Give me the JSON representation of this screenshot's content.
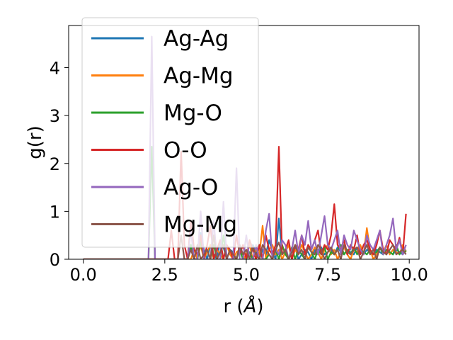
{
  "chart_data": {
    "type": "line",
    "title": "",
    "xlabel": "r (",
    "xlabel_unit": "Å",
    "xlabel_close": ")",
    "ylabel": "g(r)",
    "xlim": [
      -0.45,
      10.3
    ],
    "ylim": [
      0,
      4.88
    ],
    "xticks": [
      0.0,
      2.5,
      5.0,
      7.5,
      10.0
    ],
    "xtick_labels": [
      "0.0",
      "2.5",
      "5.0",
      "7.5",
      "10.0"
    ],
    "yticks": [
      0,
      1,
      2,
      3,
      4
    ],
    "ytick_labels": [
      "0",
      "1",
      "2",
      "3",
      "4"
    ],
    "grid": false,
    "legend_position": "top-left",
    "x": [
      0.0,
      0.1,
      0.2,
      0.3,
      0.4,
      0.5,
      0.6,
      0.7,
      0.8,
      0.9,
      1.0,
      1.1,
      1.2,
      1.3,
      1.4,
      1.5,
      1.6,
      1.7,
      1.8,
      1.9,
      2.0,
      2.1,
      2.2,
      2.3,
      2.4,
      2.5,
      2.6,
      2.7,
      2.8,
      2.9,
      3.0,
      3.1,
      3.2,
      3.3,
      3.4,
      3.5,
      3.6,
      3.7,
      3.8,
      3.9,
      4.0,
      4.1,
      4.2,
      4.3,
      4.4,
      4.5,
      4.6,
      4.7,
      4.8,
      4.9,
      5.0,
      5.1,
      5.2,
      5.3,
      5.4,
      5.5,
      5.6,
      5.7,
      5.8,
      5.9,
      6.0,
      6.1,
      6.2,
      6.3,
      6.4,
      6.5,
      6.6,
      6.7,
      6.8,
      6.9,
      7.0,
      7.1,
      7.2,
      7.3,
      7.4,
      7.5,
      7.6,
      7.7,
      7.8,
      7.9,
      8.0,
      8.1,
      8.2,
      8.3,
      8.4,
      8.5,
      8.6,
      8.7,
      8.8,
      8.9,
      9.0,
      9.1,
      9.2,
      9.3,
      9.4,
      9.5,
      9.6,
      9.7,
      9.8,
      9.9
    ],
    "series": [
      {
        "name": "Ag-Ag",
        "color": "#1f77b4",
        "values": [
          0,
          0,
          0,
          0,
          0,
          0,
          0,
          0,
          0,
          0,
          0,
          0,
          0,
          0,
          0,
          0,
          0,
          0,
          0,
          0,
          0,
          0,
          0,
          0,
          0,
          0,
          0,
          0,
          0,
          0,
          0,
          0,
          0,
          0.3,
          0,
          0,
          0.55,
          0.2,
          0,
          0.3,
          0.1,
          0,
          0.4,
          0.25,
          0,
          0.2,
          0.15,
          0,
          0.25,
          0.1,
          0.2,
          0,
          0.3,
          0.15,
          0,
          0.2,
          0.1,
          0.4,
          0.15,
          0,
          0.85,
          0.1,
          0.2,
          0,
          0.15,
          0.25,
          0,
          0.1,
          0.2,
          0.15,
          0,
          0.2,
          0.1,
          0.25,
          0.1,
          0.15,
          0.2,
          0.1,
          0.25,
          0.15,
          0.1,
          0.2,
          0.15,
          0.1,
          0.25,
          0.15,
          0.1,
          0.2,
          0.15,
          0.1,
          0.2,
          0.15,
          0.1,
          0.2,
          0.15,
          0.1,
          0.2,
          0.15,
          0.1,
          0.2
        ]
      },
      {
        "name": "Ag-Mg",
        "color": "#ff7f0e",
        "values": [
          0,
          0,
          0,
          0,
          0,
          0,
          0,
          0,
          0,
          0,
          0,
          0,
          0,
          0,
          0,
          0,
          0,
          0,
          0,
          0,
          0,
          0,
          0,
          0,
          0,
          0,
          0,
          0,
          0,
          0,
          0,
          0,
          0,
          0,
          0.2,
          0,
          0.3,
          0,
          0.15,
          0.3,
          0,
          0.2,
          0.1,
          0,
          0.3,
          0.1,
          0,
          0.15,
          0.2,
          0,
          0.1,
          0.3,
          0,
          0.2,
          0.1,
          0.7,
          0,
          0.2,
          0.3,
          0.1,
          0.2,
          0,
          0.15,
          0.3,
          0,
          0.2,
          0.1,
          0.3,
          0.15,
          0,
          0.1,
          0.25,
          0.15,
          0,
          0.2,
          0.3,
          0.1,
          0.2,
          0,
          0.15,
          0.25,
          0.1,
          0,
          0.2,
          0.15,
          0.3,
          0.1,
          0.65,
          0.2,
          0,
          0.1,
          0.25,
          0.15,
          0.3,
          0.1,
          0.2,
          0.15,
          0.1,
          0.3,
          0.15
        ]
      },
      {
        "name": "Mg-O",
        "color": "#2ca02c",
        "values": [
          0,
          0,
          0,
          0,
          0,
          0,
          0,
          0,
          0,
          0,
          0,
          0,
          0,
          0,
          0,
          0,
          0,
          0,
          0,
          0,
          0,
          2.35,
          0,
          0,
          0,
          0,
          0,
          0,
          0,
          0,
          0,
          0,
          0,
          0.3,
          0,
          0,
          0.4,
          0,
          0,
          0,
          0.3,
          0,
          0,
          0.5,
          0,
          0,
          0,
          0,
          0.2,
          0,
          0,
          0.15,
          0,
          0,
          0.3,
          0,
          0,
          0.1,
          0,
          0.2,
          0,
          0.3,
          0.1,
          0,
          0.25,
          0,
          0.2,
          0.1,
          0,
          0.3,
          0.15,
          0,
          0.2,
          0.1,
          0.25,
          0,
          0.15,
          0.1,
          0.2,
          0.3,
          0.1,
          0.2,
          0.1,
          0.25,
          0.1,
          0.2,
          0.15,
          0.1,
          0.2,
          0.1,
          0.15,
          0.25,
          0.1,
          0.2,
          0.15,
          0.1,
          0.3,
          0.1,
          0.2,
          0.15
        ]
      },
      {
        "name": "O-O",
        "color": "#d62728",
        "values": [
          0,
          0,
          0,
          0,
          0,
          0,
          0,
          0,
          0,
          0,
          0,
          0,
          0,
          0,
          0,
          0,
          0,
          0,
          0,
          0,
          0,
          0,
          0,
          0,
          0,
          0,
          0,
          0.6,
          0,
          0,
          2.25,
          0.3,
          0,
          0.8,
          0.2,
          0.1,
          0.5,
          0,
          0.3,
          0.7,
          0,
          0.2,
          0.4,
          0,
          0.3,
          0.2,
          0,
          0.5,
          0.1,
          0.3,
          0,
          0.4,
          0.2,
          0,
          0.3,
          0,
          0.5,
          0.2,
          0.1,
          0.3,
          2.35,
          0.1,
          0.2,
          0.4,
          0,
          0.3,
          0.2,
          0.5,
          0.1,
          0.3,
          0.2,
          0.4,
          0.6,
          0.1,
          0.3,
          0.2,
          0.5,
          1.15,
          0.3,
          0.2,
          0.4,
          0.1,
          0.3,
          0.2,
          0.5,
          0.1,
          0.3,
          0.4,
          0.2,
          0.1,
          0.3,
          0.6,
          0.2,
          0.1,
          0.4,
          0.3,
          0.2,
          0.45,
          0.1,
          0.95
        ]
      },
      {
        "name": "Ag-O",
        "color": "#9467bd",
        "values": [
          0,
          0,
          0,
          0,
          0,
          0,
          0,
          0,
          0,
          0,
          0,
          0,
          0,
          0,
          0,
          0,
          0,
          0,
          0,
          0,
          0,
          4.65,
          0,
          0,
          0,
          0,
          0,
          0,
          0,
          0,
          0,
          0,
          0,
          0.6,
          0,
          0,
          1.0,
          0,
          0,
          0,
          0.8,
          0,
          0,
          1.2,
          0,
          0,
          0,
          1.9,
          0,
          0,
          0.5,
          0,
          0,
          0.3,
          0,
          0,
          0.6,
          0.95,
          0,
          0.2,
          0.1,
          0.4,
          0.3,
          0,
          0.2,
          0.6,
          0.1,
          0.5,
          0.3,
          0.8,
          0.2,
          0.4,
          0.1,
          0.5,
          0.9,
          0.3,
          0.2,
          0.4,
          0.6,
          0.1,
          0.5,
          0.3,
          0.2,
          0.6,
          0.4,
          0.2,
          0.1,
          0.5,
          0.3,
          0.2,
          0.4,
          0.6,
          0.1,
          0.3,
          0.5,
          0.85,
          0.2,
          0.4,
          0.1,
          0.3
        ]
      },
      {
        "name": "Mg-Mg",
        "color": "#8c564b",
        "values": [
          0,
          0,
          0,
          0,
          0,
          0,
          0,
          0,
          0,
          0,
          0,
          0,
          0,
          0,
          0,
          0,
          0,
          0,
          0,
          0,
          0,
          0,
          0,
          0,
          0,
          0,
          0,
          0,
          0,
          0,
          0.5,
          0,
          0,
          0.2,
          0,
          0.3,
          0,
          0.1,
          0.2,
          0,
          0.5,
          0,
          0.15,
          0.3,
          0,
          0.2,
          0.1,
          0,
          0.3,
          0.1,
          0.2,
          0,
          0.25,
          0.1,
          0,
          0.3,
          0.2,
          0.1,
          0,
          0.2,
          0.35,
          0.1,
          0.2,
          0,
          0.15,
          0.3,
          0.1,
          0.2,
          0,
          0.25,
          0.15,
          0.1,
          0.3,
          0.2,
          0,
          0.15,
          0.25,
          0.1,
          0.2,
          0,
          0.3,
          0.15,
          0.1,
          0.2,
          0.25,
          0,
          0.15,
          0.3,
          0.1,
          0.2,
          0,
          0.25,
          0.15,
          0.1,
          0.2,
          0.3,
          0.1,
          0.15,
          0.2,
          0.1
        ]
      }
    ]
  }
}
